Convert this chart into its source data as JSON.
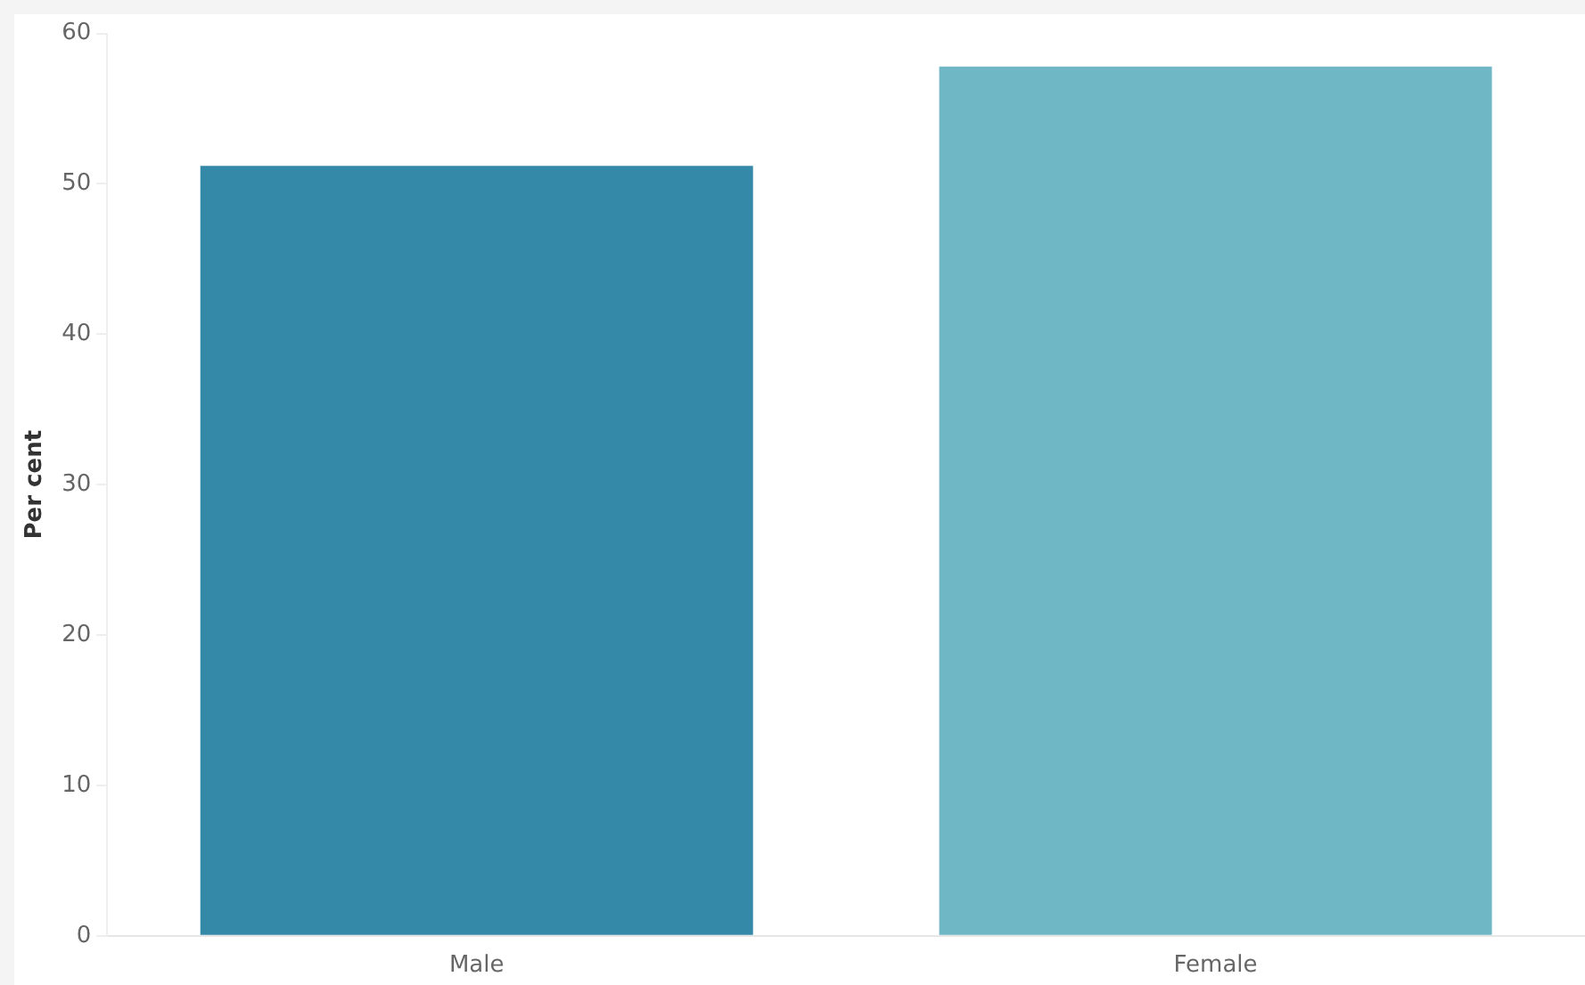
{
  "chart_data": {
    "type": "bar",
    "ylabel": "Per cent",
    "categories": [
      "Male",
      "Female"
    ],
    "values": [
      51.2,
      57.8
    ],
    "colors": [
      "#3589a8",
      "#6fb7c5"
    ],
    "ylim": [
      0,
      60
    ],
    "yticks": [
      0,
      10,
      20,
      30,
      40,
      50,
      60
    ],
    "grid": false,
    "legend": false
  }
}
